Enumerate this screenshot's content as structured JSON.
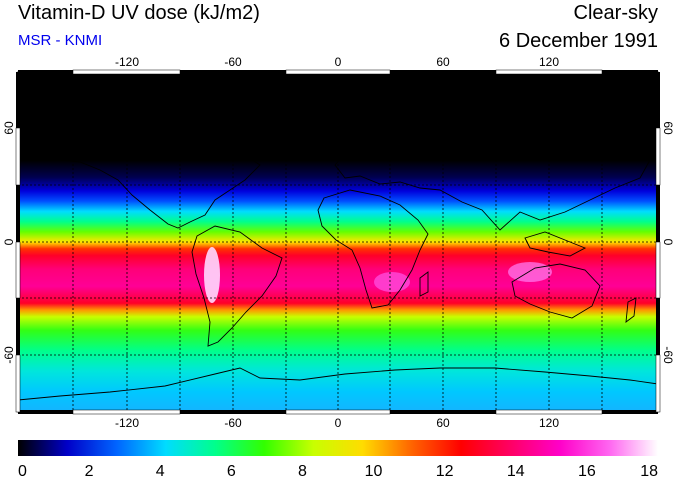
{
  "header": {
    "title": "Vitamin-D UV dose (kJ/m2)",
    "source": "MSR - KNMI",
    "condition": "Clear-sky",
    "date": "6 December 1991"
  },
  "map": {
    "projection": "equirectangular",
    "lon_range": [
      -180,
      180
    ],
    "lat_range": [
      -90,
      90
    ],
    "lon_ticks": [
      "-120",
      "-60",
      "0",
      "60",
      "120"
    ],
    "lat_ticks": [
      "60",
      "0",
      "-60"
    ],
    "grid": "dashed 30°",
    "coastlines": true
  },
  "colorbar": {
    "min": 0,
    "max": 18,
    "labels": [
      "0",
      "2",
      "4",
      "6",
      "8",
      "10",
      "12",
      "14",
      "16",
      "18"
    ],
    "colors": [
      "#000000",
      "#0000c8",
      "#0064ff",
      "#00dcff",
      "#00ff8c",
      "#32ff00",
      "#c8ff00",
      "#ffdc00",
      "#ff6400",
      "#ff0000",
      "#ff0064",
      "#ff00c8",
      "#ff64f0",
      "#ffffff"
    ]
  }
}
